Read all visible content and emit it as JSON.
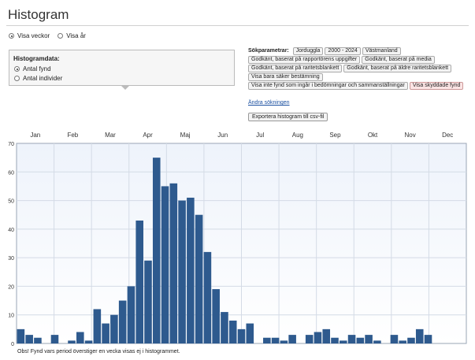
{
  "page": {
    "title": "Histogram"
  },
  "view_toggle": {
    "options": [
      "Visa veckor",
      "Visa år"
    ],
    "selected": "Visa veckor"
  },
  "histogram_panel": {
    "title": "Histogramdata:",
    "options": [
      "Antal fynd",
      "Antal individer"
    ],
    "selected": "Antal fynd"
  },
  "search_params": {
    "label": "Sökparametrar:",
    "tags": [
      {
        "text": "Jorduggla"
      },
      {
        "text": "2000 - 2024"
      },
      {
        "text": "Västmanland"
      },
      {
        "text": "Godkänt, baserat på rapportörens uppgifter"
      },
      {
        "text": "Godkänt, baserat på media"
      },
      {
        "text": "Godkänt, baserat på raritetsblankett"
      },
      {
        "text": "Godkänt, baserat på äldre raritetsblankett"
      },
      {
        "text": "Visa bara säker bestämning"
      },
      {
        "text": "Visa inte fynd som ingår i bedömningar och sammanställningar"
      },
      {
        "text": "Visa skyddade fynd",
        "highlight": true
      }
    ],
    "change_link": "Ändra sökningen",
    "export_button": "Exportera histogram till csv-fil"
  },
  "chart_data": {
    "type": "bar",
    "title": "",
    "xlabel": "",
    "ylabel": "",
    "ylim": [
      0,
      70
    ],
    "yticks": [
      0,
      10,
      20,
      30,
      40,
      50,
      60,
      70
    ],
    "months": [
      "Jan",
      "Feb",
      "Mar",
      "Apr",
      "Maj",
      "Jun",
      "Jul",
      "Aug",
      "Sep",
      "Okt",
      "Nov",
      "Dec"
    ],
    "grid": true,
    "x_unit": "week",
    "x": [
      1,
      2,
      3,
      4,
      5,
      6,
      7,
      8,
      9,
      10,
      11,
      12,
      13,
      14,
      15,
      16,
      17,
      18,
      19,
      20,
      21,
      22,
      23,
      24,
      25,
      26,
      27,
      28,
      29,
      30,
      31,
      32,
      33,
      34,
      35,
      36,
      37,
      38,
      39,
      40,
      41,
      42,
      43,
      44,
      45,
      46,
      47,
      48,
      49,
      50,
      51,
      52,
      53
    ],
    "values": [
      5,
      3,
      2,
      0,
      3,
      0,
      1,
      4,
      1,
      12,
      7,
      10,
      15,
      20,
      43,
      29,
      65,
      55,
      56,
      50,
      51,
      45,
      32,
      19,
      11,
      8,
      5,
      7,
      0,
      2,
      2,
      1,
      3,
      0,
      3,
      4,
      5,
      2,
      1,
      3,
      2,
      3,
      1,
      0,
      3,
      1,
      2,
      5,
      3,
      0,
      0,
      0,
      0
    ]
  },
  "footer_note": "Obs! Fynd vars period överstiger en vecka visas ej i histogrammet."
}
